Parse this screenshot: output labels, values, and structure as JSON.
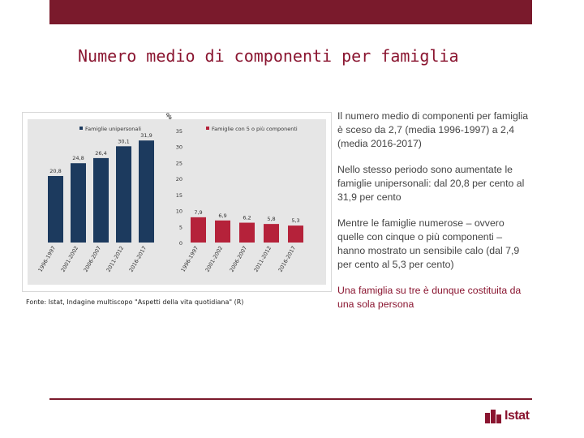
{
  "slide": {
    "title": "Numero medio di componenti per famiglia",
    "percent_label": "%",
    "source": "Fonte: Istat, Indagine multiscopo \"Aspetti della vita quotidiana\" (R)",
    "paragraphs": [
      "Il numero medio di componenti per famiglia è sceso da 2,7 (media 1996-1997) a 2,4 (media 2016-2017)",
      "Nello stesso periodo sono aumentate le famiglie unipersonali: dal 20,8 per cento al 31,9 per cento",
      "Mentre le famiglie numerose – ovvero quelle con cinque o più componenti – hanno mostrato un sensibile calo (dal 7,9 per cento al 5,3 per cento)",
      "Una famiglia su tre è dunque costituita da una sola persona"
    ],
    "logo_text": "Istat"
  },
  "colors": {
    "brand": "#7a1a2c",
    "series_a": "#1c3a5e",
    "series_b": "#b5223a",
    "chart_bg": "#e6e6e6"
  },
  "chart_data": [
    {
      "type": "bar",
      "title": "",
      "legend": "Famiglie unipersonali",
      "categories": [
        "1996-1997",
        "2001-2002",
        "2006-2007",
        "2011-2012",
        "2016-2017"
      ],
      "values": [
        20.8,
        24.8,
        26.4,
        30.1,
        31.9
      ],
      "value_labels": [
        "20,8",
        "24,8",
        "26,4",
        "30,1",
        "31,9"
      ],
      "ylim": [
        0,
        35
      ],
      "yticks": [
        "0",
        "5",
        "10",
        "15",
        "20",
        "25",
        "30",
        "35"
      ]
    },
    {
      "type": "bar",
      "title": "",
      "legend": "Famiglie con 5 o più componenti",
      "categories": [
        "1996-1997",
        "2001-2002",
        "2006-2007",
        "2011-2012",
        "2016-2017"
      ],
      "values": [
        7.9,
        6.9,
        6.2,
        5.8,
        5.3
      ],
      "value_labels": [
        "7,9",
        "6,9",
        "6,2",
        "5,8",
        "5,3"
      ],
      "ylim": [
        0,
        35
      ]
    }
  ]
}
